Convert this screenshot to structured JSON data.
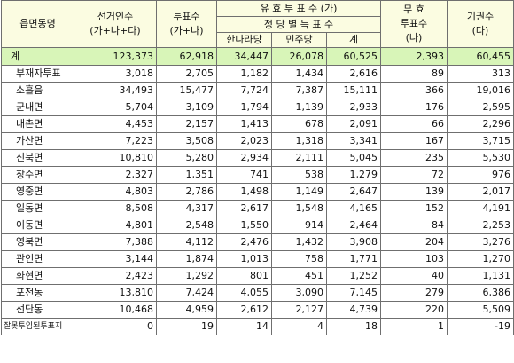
{
  "headers": {
    "region": "읍면동명",
    "electors": "선거인수 (가+나+다)",
    "votes": "투표수 (가+나)",
    "valid_group": "유 효 투 표 수 (가)",
    "party_group": "정 당 별 득 표 수",
    "party1": "한나라당",
    "party2": "민주당",
    "party_total": "계",
    "invalid": "무 효 투표수 (나)",
    "abstain": "기권수 (다)"
  },
  "total": {
    "name": "계",
    "values": [
      "123,373",
      "62,918",
      "34,447",
      "26,078",
      "60,525",
      "2,393",
      "60,455"
    ]
  },
  "rows": [
    {
      "name": "부재자투표",
      "values": [
        "3,018",
        "2,705",
        "1,182",
        "1,434",
        "2,616",
        "89",
        "313"
      ]
    },
    {
      "name": "소흘읍",
      "values": [
        "34,493",
        "15,477",
        "7,724",
        "7,387",
        "15,111",
        "366",
        "19,016"
      ]
    },
    {
      "name": "군내면",
      "values": [
        "5,704",
        "3,109",
        "1,794",
        "1,139",
        "2,933",
        "176",
        "2,595"
      ]
    },
    {
      "name": "내촌면",
      "values": [
        "4,453",
        "2,157",
        "1,413",
        "678",
        "2,091",
        "66",
        "2,296"
      ]
    },
    {
      "name": "가산면",
      "values": [
        "7,223",
        "3,508",
        "2,023",
        "1,318",
        "3,341",
        "167",
        "3,715"
      ]
    },
    {
      "name": "신북면",
      "values": [
        "10,810",
        "5,280",
        "2,934",
        "2,111",
        "5,045",
        "235",
        "5,530"
      ]
    },
    {
      "name": "창수면",
      "values": [
        "2,327",
        "1,351",
        "741",
        "538",
        "1,279",
        "72",
        "976"
      ]
    },
    {
      "name": "영중면",
      "values": [
        "4,803",
        "2,786",
        "1,498",
        "1,149",
        "2,647",
        "139",
        "2,017"
      ]
    },
    {
      "name": "일동면",
      "values": [
        "8,508",
        "4,317",
        "2,617",
        "1,548",
        "4,165",
        "152",
        "4,191"
      ]
    },
    {
      "name": "이동면",
      "values": [
        "4,801",
        "2,548",
        "1,550",
        "914",
        "2,464",
        "84",
        "2,253"
      ]
    },
    {
      "name": "영북면",
      "values": [
        "7,388",
        "4,112",
        "2,476",
        "1,432",
        "3,908",
        "204",
        "3,276"
      ]
    },
    {
      "name": "관인면",
      "values": [
        "3,144",
        "1,874",
        "1,013",
        "758",
        "1,771",
        "103",
        "1,270"
      ]
    },
    {
      "name": "화현면",
      "values": [
        "2,423",
        "1,292",
        "801",
        "451",
        "1,252",
        "40",
        "1,131"
      ]
    },
    {
      "name": "포천동",
      "values": [
        "13,810",
        "7,424",
        "4,055",
        "3,090",
        "7,145",
        "279",
        "6,386"
      ]
    },
    {
      "name": "선단동",
      "values": [
        "10,468",
        "4,959",
        "2,612",
        "2,127",
        "4,739",
        "220",
        "5,509"
      ]
    },
    {
      "name": "잘못투입된투표지",
      "values": [
        "0",
        "19",
        "14",
        "4",
        "18",
        "1",
        "-19"
      ],
      "small": true
    }
  ]
}
